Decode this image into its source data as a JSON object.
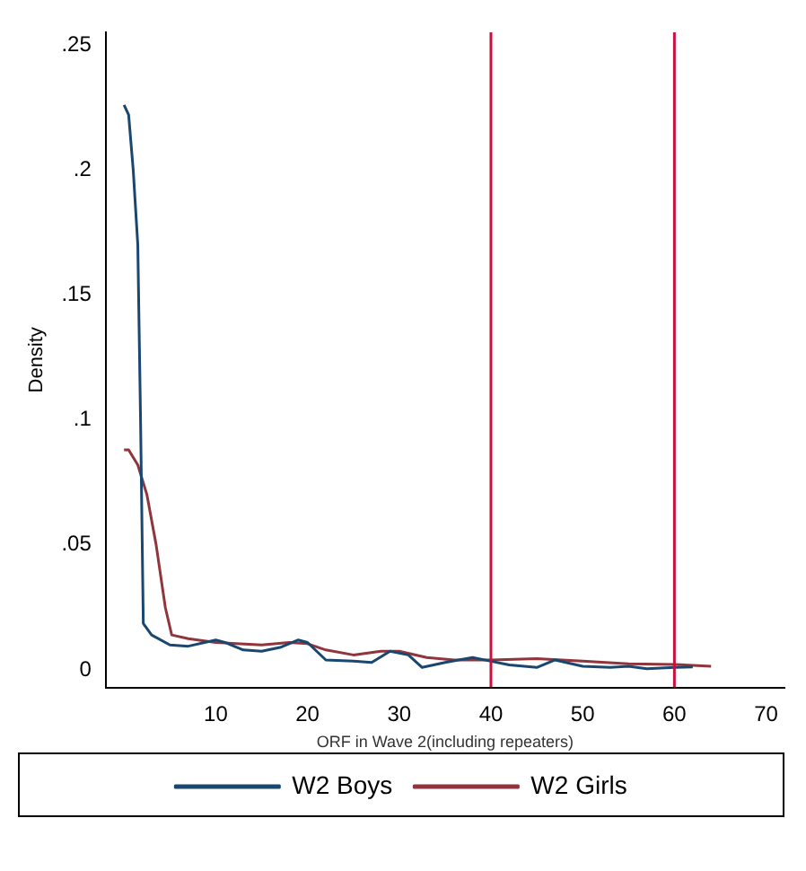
{
  "chart_data": {
    "type": "line",
    "xlabel": "ORF in Wave 2(including repeaters)",
    "ylabel": "Density",
    "xlim": [
      -2,
      72
    ],
    "xticks": [
      10,
      20,
      30,
      40,
      50,
      60,
      70
    ],
    "ylim": [
      -0.007,
      0.255
    ],
    "yticks": [
      {
        "value": 0,
        "label": "0"
      },
      {
        "value": 0.05,
        "label": ".05"
      },
      {
        "value": 0.1,
        "label": ".1"
      },
      {
        "value": 0.15,
        "label": ".15"
      },
      {
        "value": 0.2,
        "label": ".2"
      },
      {
        "value": 0.25,
        "label": ".25"
      }
    ],
    "grid": false,
    "legend": "bottom",
    "marker": "none",
    "line_style": "solid",
    "series": [
      {
        "name": "W2 Boys",
        "color": "#1a476f",
        "x": [
          0,
          0.5,
          1,
          1.5,
          1.8,
          2.1,
          3,
          5,
          7,
          10,
          11,
          13,
          15,
          17,
          19,
          20,
          22,
          25,
          27,
          29,
          31,
          32.5,
          35,
          38,
          40,
          42,
          45,
          47,
          50,
          53,
          55,
          57,
          60,
          62
        ],
        "values": [
          0.226,
          0.222,
          0.2,
          0.17,
          0.1,
          0.0186,
          0.014,
          0.01,
          0.0095,
          0.012,
          0.011,
          0.008,
          0.0075,
          0.009,
          0.012,
          0.011,
          0.004,
          0.0035,
          0.003,
          0.0075,
          0.006,
          0.001,
          0.003,
          0.005,
          0.0035,
          0.002,
          0.001,
          0.004,
          0.0015,
          0.001,
          0.0015,
          0.0005,
          0.001,
          0.0012
        ]
      },
      {
        "name": "W2 Girls",
        "color": "#90353b",
        "x": [
          0,
          0.5,
          1.5,
          2.5,
          3.5,
          4.5,
          5.2,
          7,
          10,
          15,
          18,
          20,
          22,
          25,
          28,
          30,
          33,
          36,
          40,
          45,
          50,
          55,
          60,
          64
        ],
        "values": [
          0.088,
          0.088,
          0.082,
          0.07,
          0.05,
          0.025,
          0.014,
          0.0125,
          0.011,
          0.01,
          0.011,
          0.0105,
          0.008,
          0.006,
          0.0075,
          0.0075,
          0.005,
          0.004,
          0.004,
          0.0045,
          0.0035,
          0.0025,
          0.0022,
          0.0015
        ]
      }
    ],
    "ref_lines": [
      {
        "axis": "x",
        "value": 40,
        "color": "#c8103e"
      },
      {
        "axis": "x",
        "value": 60,
        "color": "#c8103e"
      }
    ]
  }
}
